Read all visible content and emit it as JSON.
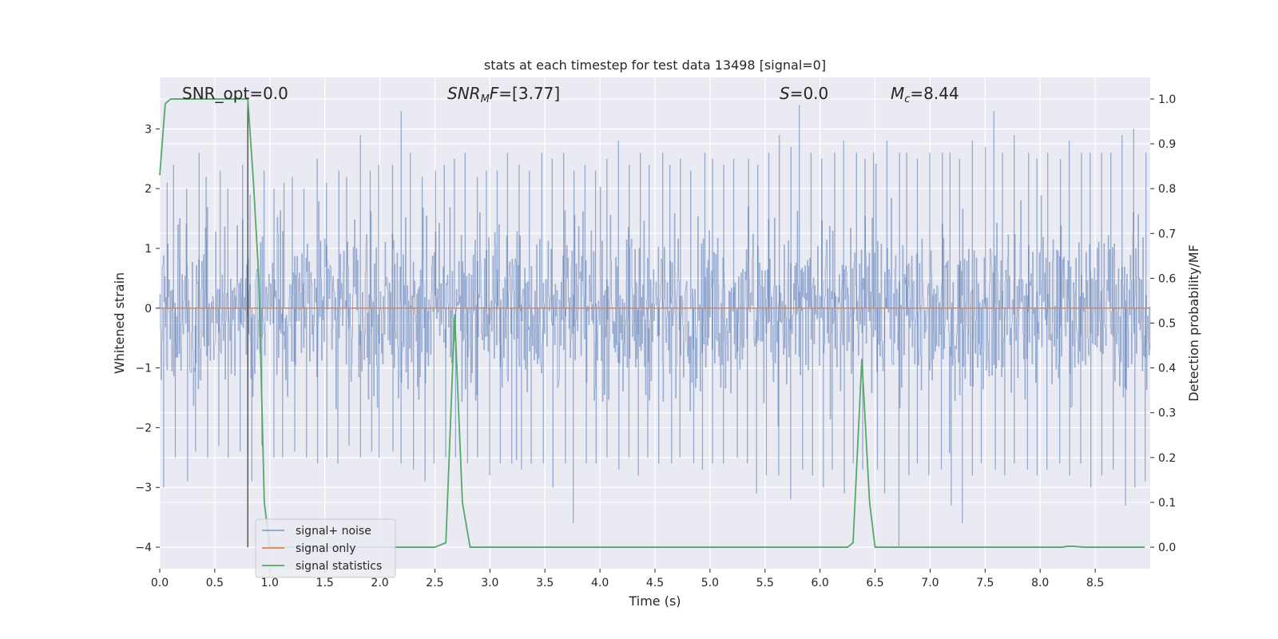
{
  "chart_data": {
    "type": "line",
    "title": "stats at each timestep for test data 13498 [signal=0]",
    "xlabel": "Time (s)",
    "ylabel": "Whitened strain",
    "y2label": "Detection probability/MF",
    "xlim": [
      0.0,
      9.0
    ],
    "ylim": [
      -4.36,
      3.86
    ],
    "y2lim": [
      -0.048,
      1.048
    ],
    "xticks": [
      "0.0",
      "0.5",
      "1.0",
      "1.5",
      "2.0",
      "2.5",
      "3.0",
      "3.5",
      "4.0",
      "4.5",
      "5.0",
      "5.5",
      "6.0",
      "6.5",
      "7.0",
      "7.5",
      "8.0",
      "8.5"
    ],
    "yticks": [
      "−4",
      "−3",
      "−2",
      "−1",
      "0",
      "1",
      "2",
      "3"
    ],
    "y2ticks": [
      "0.0",
      "0.1",
      "0.2",
      "0.3",
      "0.4",
      "0.5",
      "0.6",
      "0.7",
      "0.8",
      "0.9",
      "1.0"
    ],
    "grid": true,
    "legend_position": "lower-left",
    "annotations": {
      "snr_opt": "SNR_opt=0.0",
      "snr_mf": "[3.77]",
      "s": "=0.0",
      "mc": "=8.44"
    },
    "vline_x": 0.8,
    "series": [
      {
        "name": "signal+ noise",
        "color": "#4c72b0",
        "kind": "noise",
        "envelope_max": [
          2.1,
          2.4,
          2.0,
          2.6,
          2.2,
          2.3,
          2.0,
          2.4,
          1.9,
          2.3,
          2.0,
          2.1,
          2.2,
          2.0,
          2.5,
          2.1,
          2.3,
          2.2,
          2.9,
          2.3,
          2.4,
          2.4,
          3.3,
          2.6,
          2.2,
          2.3,
          2.4,
          2.5,
          2.6,
          2.2,
          2.3,
          2.3,
          2.6,
          2.4,
          2.3,
          2.6,
          2.5,
          2.6,
          2.3,
          2.4,
          2.3,
          2.5,
          2.8,
          2.4,
          2.6,
          2.4,
          2.6,
          2.4,
          2.5,
          2.3,
          2.6,
          2.5,
          2.4,
          2.5,
          2.5,
          2.4,
          2.6,
          2.9,
          2.7,
          3.4,
          2.6,
          2.5,
          2.6,
          2.8,
          2.6,
          2.5,
          2.6,
          2.8,
          2.6,
          2.6,
          2.5,
          2.6,
          2.6,
          2.6,
          2.5,
          2.8,
          2.7,
          3.3,
          2.6,
          2.9,
          2.6,
          2.5,
          2.6,
          2.5,
          2.8,
          2.6,
          2.6,
          2.6,
          2.6,
          2.9,
          3.0,
          2.6
        ],
        "envelope_min": [
          -3.0,
          -2.5,
          -2.9,
          -2.4,
          -2.5,
          -2.3,
          -2.5,
          -2.4,
          -2.9,
          -2.3,
          -2.5,
          -2.5,
          -2.4,
          -2.5,
          -2.6,
          -2.5,
          -2.6,
          -2.3,
          -2.5,
          -2.4,
          -2.5,
          -2.4,
          -2.6,
          -2.7,
          -2.9,
          -2.6,
          -2.5,
          -2.5,
          -2.6,
          -2.5,
          -2.8,
          -2.6,
          -2.6,
          -2.7,
          -2.6,
          -2.6,
          -3.0,
          -2.6,
          -3.6,
          -2.6,
          -2.6,
          -2.5,
          -2.7,
          -2.5,
          -2.8,
          -2.5,
          -2.6,
          -2.6,
          -2.5,
          -2.6,
          -2.7,
          -2.6,
          -2.6,
          -2.5,
          -2.6,
          -3.1,
          -2.8,
          -2.8,
          -3.2,
          -2.7,
          -2.8,
          -3.0,
          -2.7,
          -3.1,
          -2.6,
          -2.7,
          -2.7,
          -3.1,
          -4.0,
          -2.8,
          -2.6,
          -2.8,
          -2.7,
          -3.3,
          -3.6,
          -2.8,
          -2.6,
          -2.7,
          -2.8,
          -2.6,
          -2.7,
          -2.8,
          -2.7,
          -2.6,
          -2.8,
          -2.6,
          -3.0,
          -2.8,
          -2.7,
          -3.3,
          -3.0,
          -2.9
        ]
      },
      {
        "name": "signal only",
        "color": "#dd8452",
        "x": [
          0.0,
          9.0
        ],
        "y": [
          0.0,
          0.0
        ]
      },
      {
        "name": "signal statistics",
        "color": "#55a868",
        "axis": "right",
        "x": [
          0.0,
          0.05,
          0.1,
          0.15,
          0.2,
          0.3,
          0.4,
          0.5,
          0.6,
          0.7,
          0.8,
          0.85,
          0.9,
          0.95,
          1.0,
          1.5,
          2.0,
          2.5,
          2.6,
          2.68,
          2.75,
          2.82,
          2.9,
          3.5,
          4.0,
          4.5,
          5.0,
          5.5,
          6.0,
          6.25,
          6.3,
          6.38,
          6.45,
          6.5,
          6.6,
          7.0,
          7.5,
          8.0,
          8.2,
          8.25,
          8.3,
          8.4,
          8.5,
          8.95
        ],
        "y": [
          0.83,
          0.99,
          1.0,
          1.0,
          1.0,
          1.0,
          1.0,
          1.0,
          1.0,
          1.0,
          1.0,
          0.82,
          0.6,
          0.1,
          0.0,
          0.0,
          0.0,
          0.0,
          0.01,
          0.52,
          0.1,
          0.0,
          0.0,
          0.0,
          0.0,
          0.0,
          0.0,
          0.0,
          0.0,
          0.0,
          0.01,
          0.42,
          0.1,
          0.0,
          0.0,
          0.0,
          0.0,
          0.0,
          0.0,
          0.002,
          0.002,
          0.0,
          0.0,
          0.0
        ]
      }
    ]
  }
}
